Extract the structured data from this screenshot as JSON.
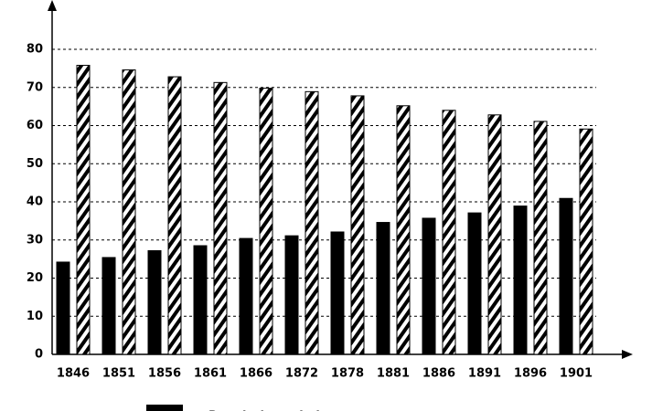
{
  "chart_data": {
    "type": "bar",
    "categories": [
      "1846",
      "1851",
      "1856",
      "1861",
      "1866",
      "1872",
      "1878",
      "1881",
      "1886",
      "1891",
      "1896",
      "1901"
    ],
    "series": [
      {
        "name": "Population urbaine",
        "color": "#000000",
        "values": [
          24.2,
          25.4,
          27.2,
          28.5,
          30.4,
          31.1,
          32.1,
          34.6,
          35.7,
          37.1,
          38.9,
          40.9
        ]
      },
      {
        "color": "hatched",
        "values": [
          75.8,
          74.6,
          72.8,
          71.3,
          69.8,
          68.9,
          67.8,
          65.2,
          64.0,
          62.8,
          61.1,
          59.1
        ]
      }
    ],
    "ylim": [
      0,
      80
    ],
    "yticks": [
      0,
      10,
      20,
      30,
      40,
      50,
      60,
      70,
      80
    ],
    "grid": true
  }
}
